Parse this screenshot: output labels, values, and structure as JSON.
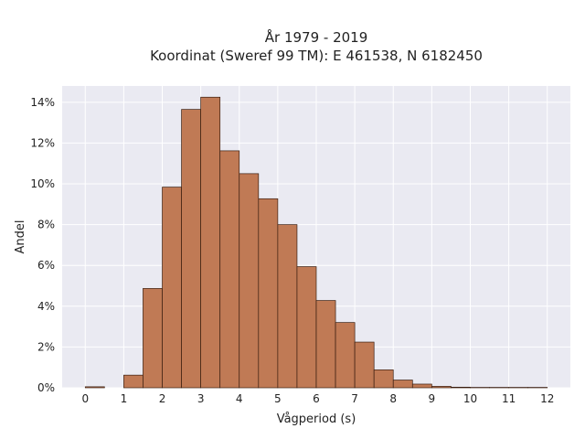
{
  "chart_data": {
    "type": "bar",
    "title": "År 1979 - 2019",
    "subtitle": "Koordinat (Sweref 99 TM): E 461538, N 6182450",
    "xlabel": "Vågperiod (s)",
    "ylabel": "Andel",
    "bin_width": 0.5,
    "x": [
      0,
      0.5,
      1,
      1.5,
      2,
      2.5,
      3,
      3.5,
      4,
      4.5,
      5,
      5.5,
      6,
      6.5,
      7,
      7.5,
      8,
      8.5,
      9,
      9.5,
      10,
      10.5,
      11,
      11.5
    ],
    "values": [
      0.05,
      0,
      0.62,
      4.87,
      9.84,
      13.65,
      14.25,
      11.62,
      10.5,
      9.27,
      8.0,
      5.94,
      4.28,
      3.2,
      2.24,
      0.88,
      0.38,
      0.18,
      0.07,
      0.03,
      0.02,
      0.02,
      0.02,
      0.02
    ],
    "xlim": [
      -0.6,
      12.6
    ],
    "ylim": [
      0,
      14.8
    ],
    "xticks": [
      0,
      1,
      2,
      3,
      4,
      5,
      6,
      7,
      8,
      9,
      10,
      11,
      12
    ],
    "yticks": [
      0,
      2,
      4,
      6,
      8,
      10,
      12,
      14
    ],
    "ytick_suffix": "%",
    "grid": true,
    "colors": {
      "bar_fill": "#c07a55",
      "bar_edge": "#3a1e10",
      "plot_background": "#eaeaf2",
      "grid": "#ffffff"
    }
  }
}
